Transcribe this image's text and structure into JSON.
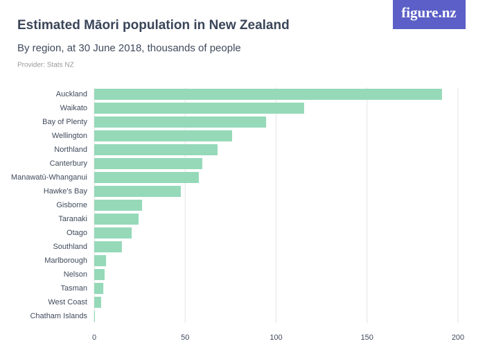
{
  "logo": "figure.nz",
  "chart_data": {
    "type": "bar",
    "orientation": "horizontal",
    "title": "Estimated Māori population in New Zealand",
    "subtitle": "By region, at 30 June 2018, thousands of people",
    "provider": "Provider: Stats NZ",
    "categories": [
      "Auckland",
      "Waikato",
      "Bay of Plenty",
      "Wellington",
      "Northland",
      "Canterbury",
      "Manawatū-Whanganui",
      "Hawke's Bay",
      "Gisborne",
      "Taranaki",
      "Otago",
      "Southland",
      "Marlborough",
      "Nelson",
      "Tasman",
      "West Coast",
      "Chatham Islands"
    ],
    "values": [
      191.2,
      115.4,
      94.5,
      75.8,
      67.8,
      59.4,
      57.5,
      47.6,
      26.3,
      24.4,
      20.6,
      15.2,
      6.5,
      5.7,
      5.0,
      3.8,
      0.4
    ],
    "color": "#95d9b9",
    "xlim": [
      0,
      200
    ],
    "xticks": [
      0,
      50,
      100,
      150,
      200
    ],
    "grid": true
  }
}
